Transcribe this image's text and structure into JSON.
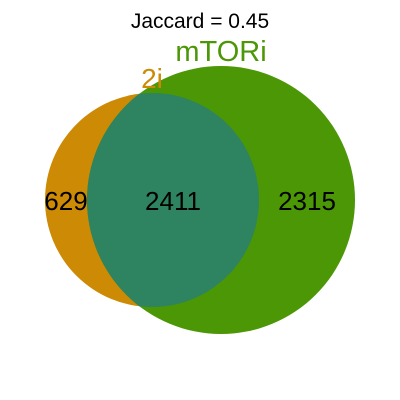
{
  "title": "Jaccard = 0.45",
  "sets": [
    {
      "key": "left",
      "label": "2i",
      "color": "#CC8A05"
    },
    {
      "key": "right",
      "label": "mTORi",
      "color": "#4C9705"
    }
  ],
  "overlap_color": "#2E8360",
  "counts": {
    "left_only": "629",
    "both": "2411",
    "right_only": "2315"
  }
}
